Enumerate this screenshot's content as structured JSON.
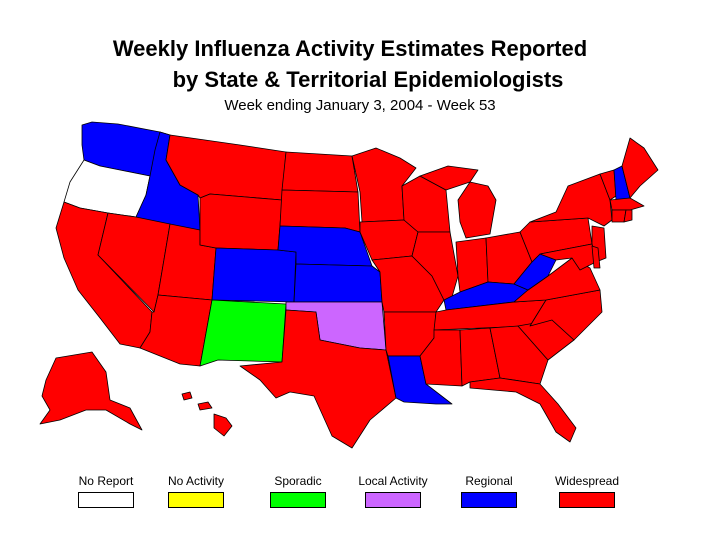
{
  "title_line1": "Weekly Influenza Activity Estimates Reported",
  "title_line2": "by State & Territorial Epidemiologists",
  "subtitle": "Week ending January 3, 2004 - Week 53",
  "legend": [
    {
      "label": "No Report",
      "color": "#ffffff"
    },
    {
      "label": "No Activity",
      "color": "#ffff00"
    },
    {
      "label": "Sporadic",
      "color": "#00ff00"
    },
    {
      "label": "Local Activity",
      "color": "#cc66ff"
    },
    {
      "label": "Regional",
      "color": "#0000ff"
    },
    {
      "label": "Widespread",
      "color": "#ff0000"
    }
  ],
  "states": {
    "No Report": [
      "Oregon"
    ],
    "Sporadic": [
      "New Mexico"
    ],
    "Local Activity": [
      "Oklahoma"
    ],
    "Regional": [
      "Washington",
      "Idaho",
      "Colorado",
      "Nebraska",
      "Kansas",
      "Louisiana",
      "Kentucky",
      "West Virginia",
      "New Hampshire"
    ],
    "Widespread": [
      "California",
      "Nevada",
      "Arizona",
      "Utah",
      "Montana",
      "Wyoming",
      "North Dakota",
      "South Dakota",
      "Minnesota",
      "Iowa",
      "Missouri",
      "Arkansas",
      "Texas",
      "Wisconsin",
      "Illinois",
      "Michigan",
      "Indiana",
      "Ohio",
      "Tennessee",
      "Mississippi",
      "Alabama",
      "Georgia",
      "Florida",
      "South Carolina",
      "North Carolina",
      "Virginia",
      "Maryland",
      "Delaware",
      "Pennsylvania",
      "New Jersey",
      "New York",
      "Connecticut",
      "Rhode Island",
      "Massachusetts",
      "Vermont",
      "Maine",
      "Alaska",
      "Hawaii"
    ]
  }
}
